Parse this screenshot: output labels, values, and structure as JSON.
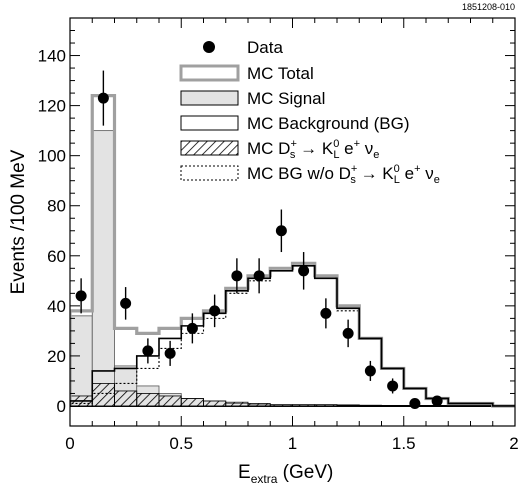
{
  "figure_id": "1851208-010",
  "chart_data": {
    "type": "bar",
    "xlabel": {
      "main": "E",
      "sub": "extra",
      "unit": " (GeV)"
    },
    "ylabel": "Events /100 MeV",
    "xlim": [
      0,
      2.0
    ],
    "ylim": [
      -8,
      155
    ],
    "xticks": [
      0,
      0.5,
      1,
      1.5,
      2
    ],
    "xtick_labels": [
      "0",
      "0.5",
      "1",
      "1.5",
      "2"
    ],
    "yticks": [
      0,
      20,
      40,
      60,
      80,
      100,
      120,
      140
    ],
    "ytick_labels": [
      "0",
      "20",
      "40",
      "60",
      "80",
      "100",
      "120",
      "140"
    ],
    "bin_width": 0.1,
    "bin_edges": [
      0,
      0.1,
      0.2,
      0.3,
      0.4,
      0.5,
      0.6,
      0.7,
      0.8,
      0.9,
      1.0,
      1.1,
      1.2,
      1.3,
      1.4,
      1.5,
      1.6,
      1.7,
      1.8,
      1.9,
      2.0
    ],
    "legend_position": "top-right",
    "legend": [
      {
        "key": "data",
        "label": "Data"
      },
      {
        "key": "mc_total",
        "label": "MC Total"
      },
      {
        "key": "mc_signal",
        "label": "MC Signal"
      },
      {
        "key": "mc_bg",
        "label": "MC Background (BG)"
      },
      {
        "key": "mc_kl",
        "label_parts": [
          "MC D",
          "+",
          "s",
          " → K",
          "0",
          "L",
          " e",
          "+",
          " ν",
          "e"
        ]
      },
      {
        "key": "mc_bg_wo",
        "label_parts": [
          "MC BG w/o D",
          "+",
          "s",
          " → K",
          "0",
          "L",
          " e",
          "+",
          " ν",
          "e"
        ]
      }
    ],
    "series": [
      {
        "key": "mc_total",
        "name": "MC Total",
        "kind": "step",
        "color": "#a0a0a0",
        "values": [
          38,
          124,
          31,
          29,
          31,
          35,
          38,
          47,
          52,
          55,
          57,
          52,
          40,
          27,
          15,
          7,
          3,
          1,
          1,
          0
        ]
      },
      {
        "key": "mc_signal",
        "name": "MC Signal",
        "kind": "filled",
        "color": "#e3e3e3",
        "values": [
          36,
          110,
          16,
          8,
          5,
          3,
          2,
          1,
          0.5,
          0.5,
          0.5,
          0.5,
          0.5,
          0,
          0,
          0,
          0,
          0,
          0,
          0
        ]
      },
      {
        "key": "mc_bg",
        "name": "MC Background (BG)",
        "kind": "step",
        "color": "#000000",
        "values": [
          2,
          14,
          15,
          20,
          27,
          32,
          37,
          46,
          51,
          54,
          56,
          51,
          39,
          27,
          15,
          7,
          3,
          1,
          1,
          0
        ]
      },
      {
        "key": "mc_kl",
        "name": "MC Ds+ → KL0 e+ νe",
        "kind": "hatched",
        "color": "#000000",
        "values": [
          4,
          9,
          6,
          5,
          4,
          3,
          2,
          1.5,
          1,
          0.5,
          0.5,
          0.5,
          0.3,
          0.3,
          0.2,
          0,
          0,
          0,
          0,
          0
        ]
      },
      {
        "key": "mc_bg_wo",
        "name": "MC BG w/o Ds+ → KL0 e+ νe",
        "kind": "dotted",
        "color": "#000000",
        "values": [
          1,
          5,
          9,
          15,
          23,
          29,
          35,
          45,
          50,
          54,
          56,
          51,
          38,
          27,
          15,
          7,
          3,
          1,
          1,
          0
        ]
      },
      {
        "key": "data",
        "name": "Data",
        "kind": "points",
        "color": "#000000",
        "x": [
          0.05,
          0.15,
          0.25,
          0.35,
          0.45,
          0.55,
          0.65,
          0.75,
          0.85,
          0.95,
          1.05,
          1.15,
          1.25,
          1.35,
          1.45,
          1.55,
          1.65
        ],
        "y": [
          44,
          123,
          41,
          22,
          21,
          31,
          38,
          52,
          52,
          70,
          54,
          37,
          29,
          14,
          8,
          1,
          2
        ],
        "err": [
          7,
          11,
          6.5,
          5,
          5,
          6,
          6.5,
          7,
          7,
          8.5,
          7.5,
          6,
          5.5,
          4,
          3,
          1,
          1.5
        ]
      }
    ]
  }
}
